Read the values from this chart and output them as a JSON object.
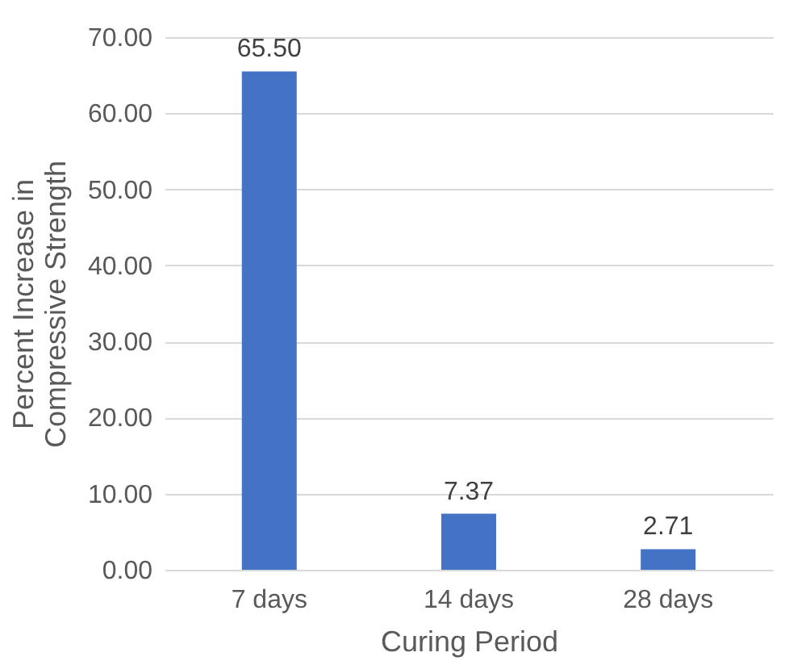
{
  "chart_data": {
    "type": "bar",
    "xlabel": "Curing Period",
    "ylabel": "Percent Increase in Compressive Strength",
    "categories": [
      "7 days",
      "14 days",
      "28 days"
    ],
    "values": [
      65.5,
      7.37,
      2.71
    ],
    "value_labels": [
      "65.50",
      "7.37",
      "2.71"
    ],
    "color": "#4472c4",
    "ylim": [
      0,
      70
    ],
    "yticks": [
      {
        "value": 0,
        "label": "0.00"
      },
      {
        "value": 10,
        "label": "10.00"
      },
      {
        "value": 20,
        "label": "20.00"
      },
      {
        "value": 30,
        "label": "30.00"
      },
      {
        "value": 40,
        "label": "40.00"
      },
      {
        "value": 50,
        "label": "50.00"
      },
      {
        "value": 60,
        "label": "60.00"
      },
      {
        "value": 70,
        "label": "70.00"
      }
    ],
    "grid": "y"
  }
}
